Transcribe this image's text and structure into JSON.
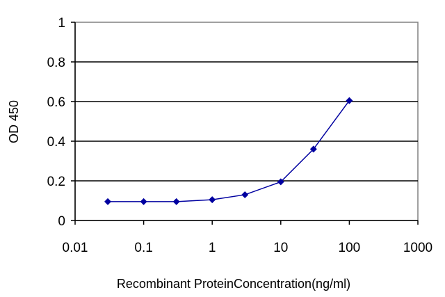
{
  "chart_data": {
    "type": "line",
    "title": "",
    "xlabel": "Recombinant ProteinConcentration(ng/ml)",
    "ylabel": "OD 450",
    "x_scale": "log",
    "xlim": [
      0.01,
      1000
    ],
    "ylim": [
      0,
      1
    ],
    "x_ticks": [
      "0.01",
      "0.1",
      "1",
      "10",
      "100",
      "1000"
    ],
    "y_ticks": [
      "0",
      "0.2",
      "0.4",
      "0.6",
      "0.8",
      "1"
    ],
    "grid": "horizontal",
    "legend": "none",
    "series": [
      {
        "x": [
          0.03,
          0.1,
          0.3,
          1,
          3,
          10,
          30,
          100
        ],
        "y": [
          0.095,
          0.095,
          0.095,
          0.105,
          0.13,
          0.195,
          0.36,
          0.605
        ],
        "color": "#0000a0"
      }
    ]
  }
}
